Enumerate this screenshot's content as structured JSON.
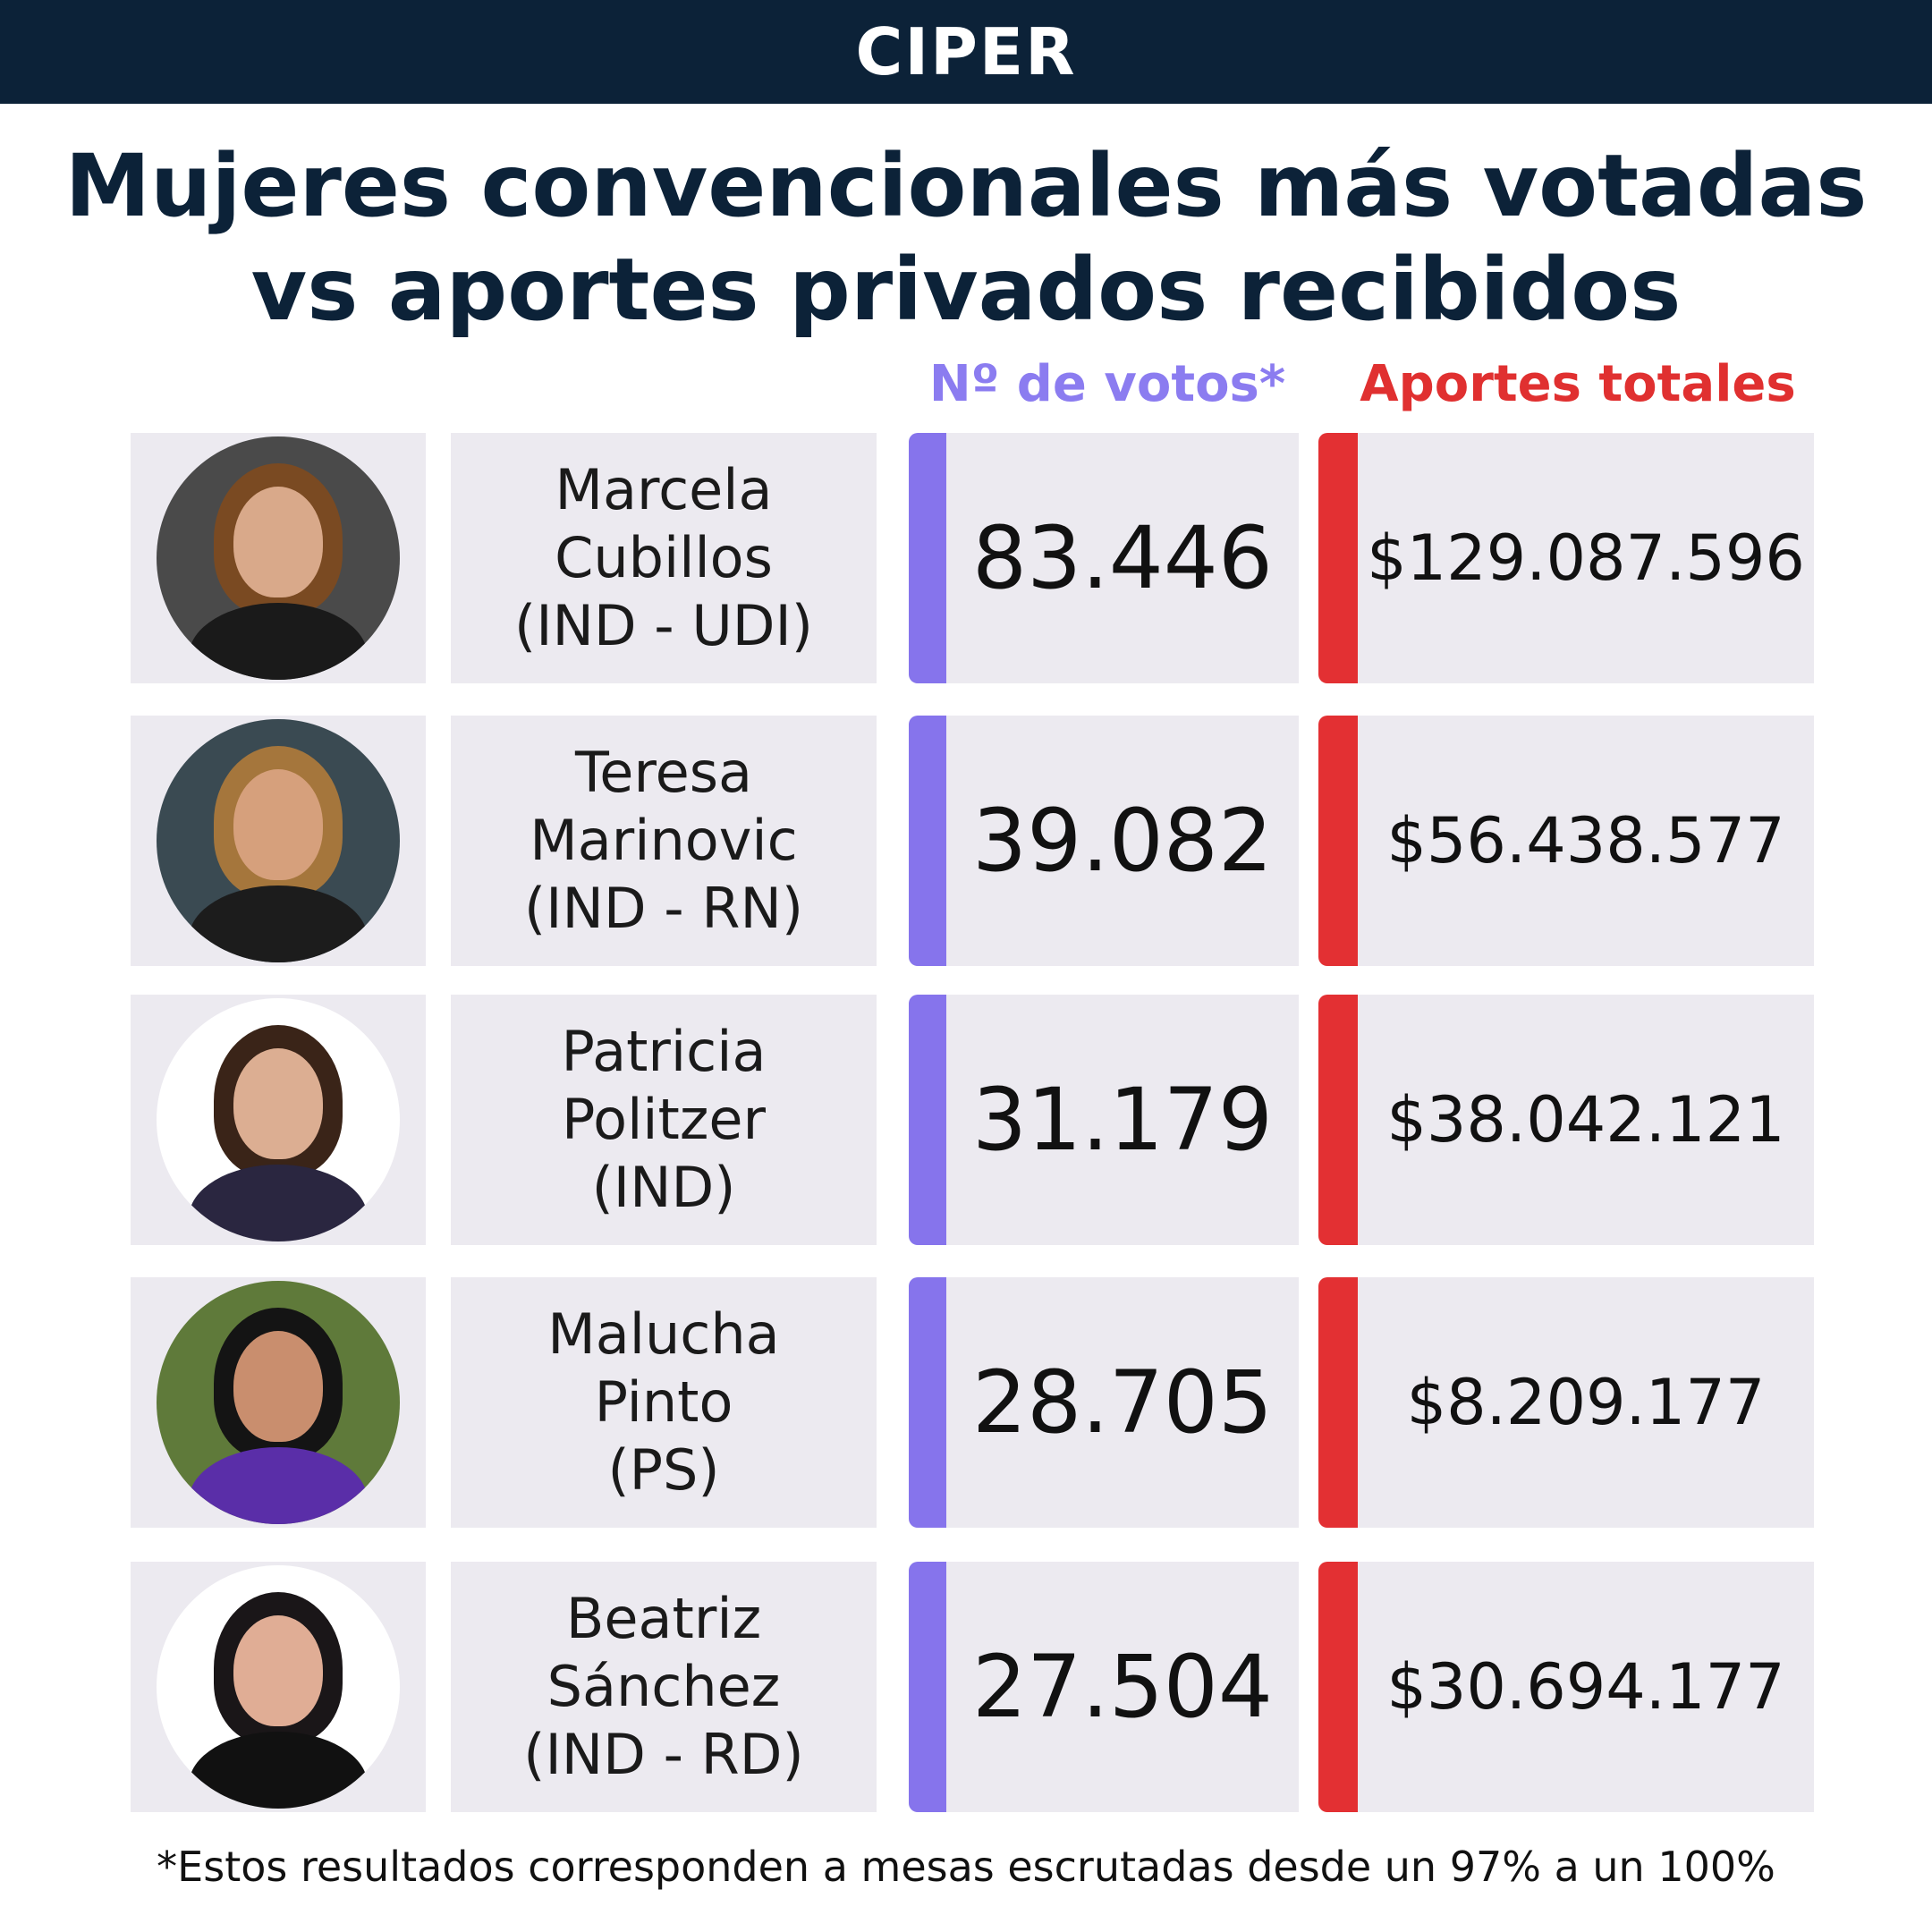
{
  "header": {
    "brand": "CIPER"
  },
  "title": {
    "line1": "Mujeres convencionales más votadas",
    "line2": "vs aportes privados recibidos"
  },
  "columns": {
    "votes": "Nº de votos*",
    "aportes": "Aportes totales"
  },
  "rows": [
    {
      "name_line1": "Marcela",
      "name_line2": "Cubillos",
      "name_line3": "(IND - UDI)",
      "votes": "83.446",
      "aportes": "$129.087.596",
      "bg": "#4a4a4a",
      "hair": "#7a4a22",
      "skin": "#d9a98a",
      "shirt": "#1a1a1a"
    },
    {
      "name_line1": "Teresa",
      "name_line2": "Marinovic",
      "name_line3": "(IND - RN)",
      "votes": "39.082",
      "aportes": "$56.438.577",
      "bg": "#3a4a52",
      "hair": "#a5763c",
      "skin": "#d6a07c",
      "shirt": "#1c1c1c"
    },
    {
      "name_line1": "Patricia",
      "name_line2": "Politzer",
      "name_line3": "(IND)",
      "votes": "31.179",
      "aportes": "$38.042.121",
      "bg": "#ffffff",
      "hair": "#3a2418",
      "skin": "#dcae92",
      "shirt": "#2a2640"
    },
    {
      "name_line1": "Malucha",
      "name_line2": "Pinto",
      "name_line3": "(PS)",
      "votes": "28.705",
      "aportes": "$8.209.177",
      "bg": "#5f7a3a",
      "hair": "#141414",
      "skin": "#c98e6e",
      "shirt": "#5a2ea8"
    },
    {
      "name_line1": "Beatriz",
      "name_line2": "Sánchez",
      "name_line3": "(IND - RD)",
      "votes": "27.504",
      "aportes": "$30.694.177",
      "bg": "#ffffff",
      "hair": "#1a1618",
      "skin": "#e0ad95",
      "shirt": "#111111"
    }
  ],
  "footnote": "*Estos resultados corresponden a mesas escrutadas desde un 97% a un 100%"
}
